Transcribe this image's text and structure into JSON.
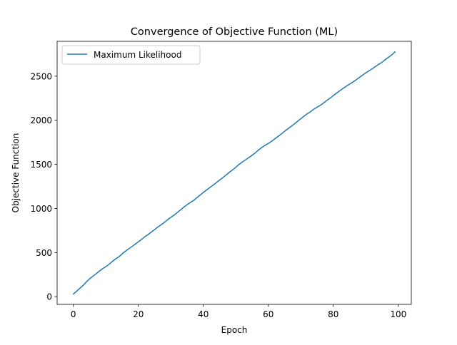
{
  "chart_data": {
    "type": "line",
    "title": "Convergence of Objective Function (ML)",
    "xlabel": "Epoch",
    "ylabel": "Objective Function",
    "xlim": [
      -5,
      104
    ],
    "ylim": [
      -87,
      2895
    ],
    "xticks": [
      0,
      20,
      40,
      60,
      80,
      100
    ],
    "yticks": [
      0,
      500,
      1000,
      1500,
      2000,
      2500
    ],
    "xtick_labels": [
      "0",
      "20",
      "40",
      "60",
      "80",
      "100"
    ],
    "ytick_labels": [
      "0",
      "500",
      "1000",
      "1500",
      "2000",
      "2500"
    ],
    "grid": false,
    "legend_position": "upper left",
    "series": [
      {
        "name": "Maximum Likelihood",
        "color": "#1f77b4",
        "x": [
          0,
          1,
          2,
          3,
          4,
          5,
          6,
          7,
          8,
          9,
          10,
          11,
          12,
          13,
          14,
          15,
          16,
          17,
          18,
          19,
          20,
          21,
          22,
          23,
          24,
          25,
          26,
          27,
          28,
          29,
          30,
          31,
          32,
          33,
          34,
          35,
          36,
          37,
          38,
          39,
          40,
          41,
          42,
          43,
          44,
          45,
          46,
          47,
          48,
          49,
          50,
          51,
          52,
          53,
          54,
          55,
          56,
          57,
          58,
          59,
          60,
          61,
          62,
          63,
          64,
          65,
          66,
          67,
          68,
          69,
          70,
          71,
          72,
          73,
          74,
          75,
          76,
          77,
          78,
          79,
          80,
          81,
          82,
          83,
          84,
          85,
          86,
          87,
          88,
          89,
          90,
          91,
          92,
          93,
          94,
          95,
          96,
          97,
          98,
          99
        ],
        "values": [
          30,
          62,
          95,
          128,
          168,
          203,
          232,
          260,
          290,
          318,
          340,
          368,
          400,
          428,
          452,
          485,
          515,
          542,
          568,
          595,
          622,
          650,
          680,
          705,
          733,
          760,
          790,
          815,
          842,
          873,
          900,
          925,
          955,
          985,
          1015,
          1043,
          1068,
          1092,
          1122,
          1152,
          1182,
          1210,
          1238,
          1265,
          1293,
          1322,
          1350,
          1380,
          1410,
          1438,
          1468,
          1500,
          1527,
          1552,
          1578,
          1603,
          1632,
          1663,
          1692,
          1716,
          1738,
          1762,
          1790,
          1817,
          1845,
          1875,
          1903,
          1930,
          1958,
          1988,
          2018,
          2048,
          2075,
          2098,
          2126,
          2148,
          2170,
          2196,
          2225,
          2250,
          2280,
          2308,
          2335,
          2362,
          2386,
          2410,
          2433,
          2458,
          2485,
          2512,
          2538,
          2562,
          2585,
          2610,
          2635,
          2658,
          2688,
          2715,
          2742,
          2775
        ]
      }
    ]
  }
}
